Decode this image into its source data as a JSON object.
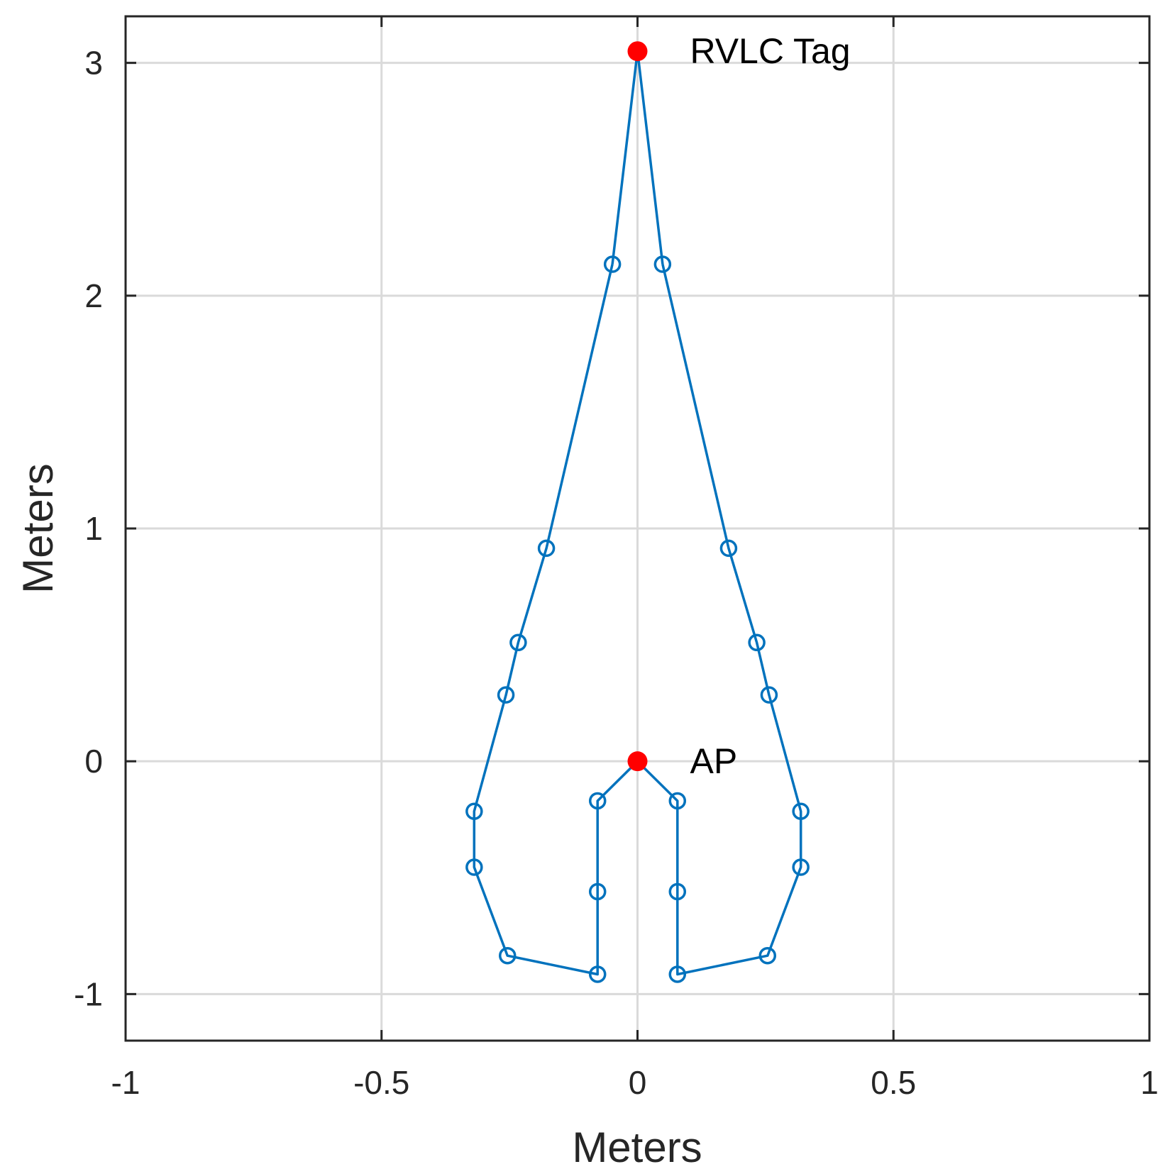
{
  "chart_data": {
    "type": "scatter",
    "title": "",
    "xlabel": "Meters",
    "ylabel": "Meters",
    "xlim": [
      -1,
      1
    ],
    "ylim": [
      -1.2,
      3.2
    ],
    "xticks": [
      -1,
      -0.5,
      0,
      0.5,
      1
    ],
    "xtick_labels": [
      "-1",
      "-0.5",
      "0",
      "0.5",
      "1"
    ],
    "yticks": [
      -1,
      0,
      1,
      2,
      3
    ],
    "ytick_labels": [
      "-1",
      "0",
      "1",
      "2",
      "3"
    ],
    "grid": true,
    "series": [
      {
        "name": "path-left",
        "color": "#0072BD",
        "marker": "circle-open",
        "x": [
          0,
          -0.078,
          -0.078,
          -0.078,
          -0.254,
          -0.319,
          -0.319,
          -0.257,
          -0.233,
          -0.178,
          -0.049
        ],
        "y": [
          0,
          -0.17,
          -0.56,
          -0.915,
          -0.835,
          -0.455,
          -0.215,
          0.285,
          0.51,
          0.915,
          2.135
        ],
        "markers": [
          false,
          true,
          true,
          true,
          true,
          true,
          true,
          true,
          true,
          true,
          true
        ]
      },
      {
        "name": "path-right",
        "color": "#0072BD",
        "marker": "circle-open",
        "x": [
          0,
          0.078,
          0.078,
          0.078,
          0.254,
          0.319,
          0.319,
          0.257,
          0.233,
          0.178,
          0.049
        ],
        "y": [
          0,
          -0.17,
          -0.56,
          -0.915,
          -0.835,
          -0.455,
          -0.215,
          0.285,
          0.51,
          0.915,
          2.135
        ],
        "markers": [
          false,
          true,
          true,
          true,
          true,
          true,
          true,
          true,
          true,
          true,
          true
        ]
      },
      {
        "name": "path-top",
        "color": "#0072BD",
        "marker": "none",
        "x": [
          -0.049,
          0,
          0.049
        ],
        "y": [
          2.135,
          3.05,
          2.135
        ],
        "markers": [
          false,
          false,
          false
        ]
      }
    ],
    "points": [
      {
        "name": "rvlc-tag-point",
        "label": "RVLC Tag",
        "x": 0,
        "y": 3.05,
        "color": "#FF0000"
      },
      {
        "name": "ap-point",
        "label": "AP",
        "x": 0,
        "y": 0,
        "color": "#FF0000"
      }
    ],
    "colors": {
      "line": "#0072BD",
      "point": "#FF0000",
      "grid": "#DADADA",
      "axis": "#262626",
      "text": "#262626"
    }
  }
}
